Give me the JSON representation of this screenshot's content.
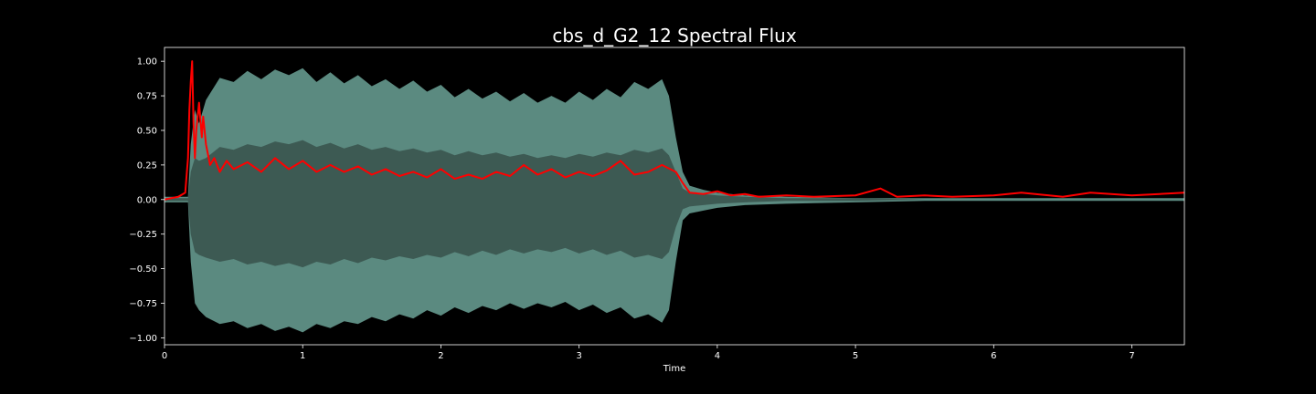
{
  "chart_data": {
    "type": "line",
    "title": "cbs_d_G2_12 Spectral Flux",
    "xlabel": "Time",
    "ylabel": "",
    "xlim": [
      0,
      7.38
    ],
    "ylim": [
      -1.05,
      1.1
    ],
    "x_ticks": [
      0,
      1,
      2,
      3,
      4,
      5,
      6,
      7
    ],
    "x_tick_labels": [
      "0",
      "1",
      "2",
      "3",
      "4",
      "5",
      "6",
      "7"
    ],
    "y_ticks": [
      1.0,
      0.75,
      0.5,
      0.25,
      0.0,
      -0.25,
      -0.5,
      -0.75,
      -1.0
    ],
    "y_tick_labels": [
      "1.00",
      "0.75",
      "0.50",
      "0.25",
      "0.00",
      "−0.25",
      "−0.50",
      "−0.75",
      "−1.00"
    ],
    "grid": false,
    "legend": "none",
    "colors": {
      "background": "#000000",
      "waveform_outer": "#5b8a80",
      "waveform_inner": "#3d5a53",
      "flux": "#ff0000",
      "axes": "#ffffff"
    },
    "series": [
      {
        "kind": "waveform-envelope",
        "x": [
          0.0,
          0.17,
          0.19,
          0.22,
          0.25,
          0.3,
          0.4,
          0.5,
          0.6,
          0.7,
          0.8,
          0.9,
          1.0,
          1.1,
          1.2,
          1.3,
          1.4,
          1.5,
          1.6,
          1.7,
          1.8,
          1.9,
          2.0,
          2.1,
          2.2,
          2.3,
          2.4,
          2.5,
          2.6,
          2.7,
          2.8,
          2.9,
          3.0,
          3.1,
          3.2,
          3.3,
          3.4,
          3.5,
          3.6,
          3.65,
          3.7,
          3.75,
          3.8,
          3.9,
          4.0,
          4.2,
          4.5,
          5.0,
          5.5,
          6.0,
          6.5,
          7.0,
          7.38
        ],
        "upper": [
          0.02,
          0.02,
          0.4,
          0.65,
          0.55,
          0.72,
          0.88,
          0.85,
          0.93,
          0.87,
          0.94,
          0.9,
          0.95,
          0.85,
          0.92,
          0.84,
          0.9,
          0.82,
          0.87,
          0.8,
          0.86,
          0.78,
          0.83,
          0.74,
          0.8,
          0.73,
          0.78,
          0.71,
          0.77,
          0.7,
          0.75,
          0.7,
          0.78,
          0.72,
          0.8,
          0.74,
          0.85,
          0.8,
          0.87,
          0.75,
          0.45,
          0.2,
          0.1,
          0.07,
          0.05,
          0.03,
          0.02,
          0.01,
          0.01,
          0.01,
          0.01,
          0.01,
          0.01
        ],
        "lower": [
          -0.02,
          -0.02,
          -0.45,
          -0.75,
          -0.8,
          -0.85,
          -0.9,
          -0.88,
          -0.93,
          -0.9,
          -0.95,
          -0.92,
          -0.96,
          -0.9,
          -0.93,
          -0.88,
          -0.9,
          -0.85,
          -0.88,
          -0.83,
          -0.86,
          -0.8,
          -0.84,
          -0.78,
          -0.82,
          -0.77,
          -0.8,
          -0.75,
          -0.79,
          -0.75,
          -0.78,
          -0.74,
          -0.8,
          -0.76,
          -0.82,
          -0.78,
          -0.86,
          -0.83,
          -0.89,
          -0.8,
          -0.45,
          -0.15,
          -0.1,
          -0.08,
          -0.06,
          -0.04,
          -0.03,
          -0.02,
          -0.01,
          -0.01,
          -0.01,
          -0.01,
          -0.01
        ],
        "inner_upper": [
          0.01,
          0.01,
          0.2,
          0.3,
          0.28,
          0.3,
          0.38,
          0.36,
          0.4,
          0.38,
          0.42,
          0.4,
          0.43,
          0.38,
          0.41,
          0.37,
          0.4,
          0.36,
          0.38,
          0.35,
          0.37,
          0.34,
          0.36,
          0.32,
          0.35,
          0.32,
          0.34,
          0.31,
          0.33,
          0.3,
          0.32,
          0.3,
          0.33,
          0.31,
          0.34,
          0.32,
          0.36,
          0.34,
          0.37,
          0.32,
          0.2,
          0.08,
          0.05,
          0.04,
          0.03,
          0.02,
          0.01,
          0.01,
          0.0,
          0.0,
          0.0,
          0.0,
          0.0
        ],
        "inner_lower": [
          -0.01,
          -0.01,
          -0.25,
          -0.38,
          -0.4,
          -0.42,
          -0.45,
          -0.43,
          -0.47,
          -0.45,
          -0.48,
          -0.46,
          -0.49,
          -0.45,
          -0.47,
          -0.43,
          -0.46,
          -0.42,
          -0.44,
          -0.41,
          -0.43,
          -0.4,
          -0.42,
          -0.38,
          -0.41,
          -0.37,
          -0.4,
          -0.36,
          -0.39,
          -0.36,
          -0.38,
          -0.35,
          -0.39,
          -0.36,
          -0.4,
          -0.37,
          -0.42,
          -0.4,
          -0.43,
          -0.38,
          -0.2,
          -0.07,
          -0.05,
          -0.04,
          -0.03,
          -0.02,
          -0.01,
          -0.01,
          0.0,
          0.0,
          0.0,
          0.0,
          0.0
        ]
      },
      {
        "kind": "spectral-flux",
        "x": [
          0.0,
          0.1,
          0.15,
          0.17,
          0.18,
          0.19,
          0.2,
          0.21,
          0.22,
          0.23,
          0.25,
          0.27,
          0.28,
          0.3,
          0.33,
          0.36,
          0.4,
          0.45,
          0.5,
          0.6,
          0.7,
          0.8,
          0.9,
          1.0,
          1.1,
          1.2,
          1.3,
          1.4,
          1.5,
          1.6,
          1.7,
          1.8,
          1.9,
          2.0,
          2.1,
          2.2,
          2.3,
          2.4,
          2.5,
          2.6,
          2.7,
          2.8,
          2.9,
          3.0,
          3.1,
          3.2,
          3.3,
          3.4,
          3.5,
          3.6,
          3.7,
          3.75,
          3.8,
          3.9,
          4.0,
          4.1,
          4.2,
          4.3,
          4.5,
          4.7,
          5.0,
          5.18,
          5.3,
          5.5,
          5.7,
          6.0,
          6.2,
          6.5,
          6.7,
          7.0,
          7.2,
          7.38
        ],
        "values": [
          0.0,
          0.02,
          0.05,
          0.3,
          0.65,
          0.85,
          1.0,
          0.55,
          0.3,
          0.5,
          0.7,
          0.45,
          0.6,
          0.4,
          0.25,
          0.3,
          0.2,
          0.28,
          0.22,
          0.27,
          0.2,
          0.3,
          0.22,
          0.28,
          0.2,
          0.25,
          0.2,
          0.24,
          0.18,
          0.22,
          0.17,
          0.2,
          0.16,
          0.22,
          0.15,
          0.18,
          0.15,
          0.2,
          0.17,
          0.25,
          0.18,
          0.22,
          0.16,
          0.2,
          0.17,
          0.21,
          0.28,
          0.18,
          0.2,
          0.25,
          0.2,
          0.12,
          0.05,
          0.04,
          0.06,
          0.03,
          0.04,
          0.02,
          0.03,
          0.02,
          0.03,
          0.08,
          0.02,
          0.03,
          0.02,
          0.03,
          0.05,
          0.02,
          0.05,
          0.03,
          0.04,
          0.05
        ]
      }
    ]
  }
}
